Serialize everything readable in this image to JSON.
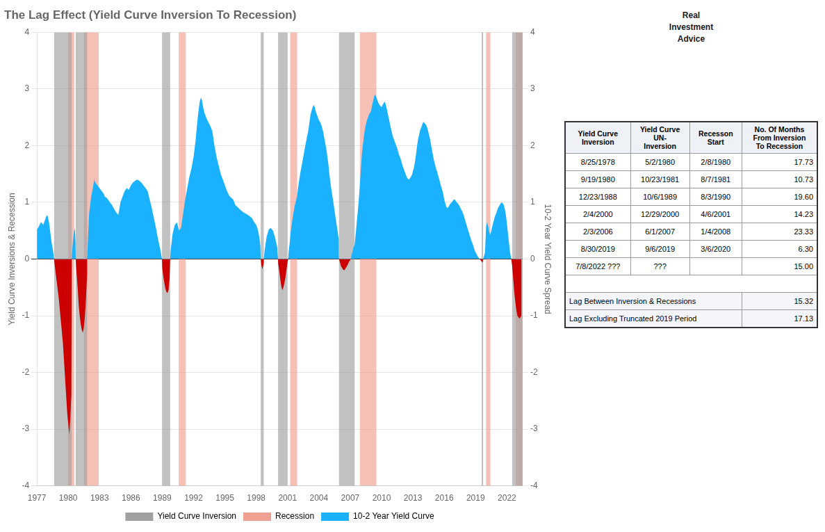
{
  "chart_data": {
    "type": "area",
    "title": "The Lag Effect (Yield Curve Inversion To Recession)",
    "y_label": "Yield Curve Inversions & Recession",
    "y2_label": "10-2 Year Yield Curve Spread",
    "xlim": [
      1977,
      2023.5
    ],
    "xticks": [
      1977,
      1980,
      1983,
      1986,
      1989,
      1992,
      1995,
      1998,
      2001,
      2004,
      2007,
      2010,
      2013,
      2016,
      2019,
      2022
    ],
    "ylim": [
      -4,
      4
    ],
    "yticks": [
      -4,
      -3,
      -2,
      -1,
      0,
      1,
      2,
      3,
      4
    ],
    "y2lim": [
      -4,
      4
    ],
    "y2ticks": [
      -4,
      -3,
      -2,
      -1,
      0,
      1,
      2,
      3,
      4
    ],
    "grid": "y",
    "legend": "bottom",
    "x": [
      1977.0,
      1977.1,
      1977.2,
      1977.3,
      1977.4,
      1977.5,
      1977.6,
      1977.7,
      1977.8,
      1977.9,
      1978.0,
      1978.1,
      1978.2,
      1978.3,
      1978.4,
      1978.5,
      1978.6,
      1978.65,
      1978.7,
      1978.8,
      1978.9,
      1979.0,
      1979.1,
      1979.2,
      1979.3,
      1979.4,
      1979.5,
      1979.6,
      1979.7,
      1979.8,
      1979.9,
      1980.0,
      1980.1,
      1980.2,
      1980.3,
      1980.34,
      1980.4,
      1980.5,
      1980.6,
      1980.65,
      1980.7,
      1980.72,
      1980.75,
      1980.8,
      1980.9,
      1981.0,
      1981.1,
      1981.2,
      1981.3,
      1981.4,
      1981.5,
      1981.6,
      1981.7,
      1981.8,
      1981.81,
      1981.9,
      1982.0,
      1982.2,
      1982.4,
      1982.5,
      1982.6,
      1982.8,
      1983.0,
      1983.2,
      1983.4,
      1983.5,
      1983.7,
      1983.8,
      1984.0,
      1984.2,
      1984.4,
      1984.6,
      1984.8,
      1985.0,
      1985.2,
      1985.4,
      1985.6,
      1985.8,
      1986.0,
      1986.2,
      1986.4,
      1986.6,
      1986.8,
      1987.0,
      1987.2,
      1987.4,
      1987.6,
      1987.8,
      1988.0,
      1988.2,
      1988.4,
      1988.6,
      1988.8,
      1988.98,
      1989.0,
      1989.1,
      1989.2,
      1989.3,
      1989.4,
      1989.5,
      1989.6,
      1989.7,
      1989.76,
      1989.8,
      1989.9,
      1990.0,
      1990.2,
      1990.4,
      1990.5,
      1990.6,
      1990.8,
      1991.0,
      1991.2,
      1991.4,
      1991.5,
      1991.6,
      1991.8,
      1992.0,
      1992.1,
      1992.2,
      1992.3,
      1992.4,
      1992.5,
      1992.6,
      1992.7,
      1992.8,
      1992.9,
      1993.0,
      1993.2,
      1993.4,
      1993.6,
      1993.8,
      1994.0,
      1994.2,
      1994.4,
      1994.6,
      1994.8,
      1995.0,
      1995.2,
      1995.4,
      1995.6,
      1995.8,
      1996.0,
      1996.2,
      1996.4,
      1996.6,
      1996.8,
      1997.0,
      1997.2,
      1997.4,
      1997.6,
      1997.8,
      1998.0,
      1998.1,
      1998.2,
      1998.3,
      1998.4,
      1998.43,
      1998.5,
      1998.6,
      1998.7,
      1998.72,
      1998.8,
      1998.9,
      1999.0,
      1999.2,
      1999.4,
      1999.6,
      1999.8,
      2000.0,
      2000.09,
      2000.1,
      2000.2,
      2000.3,
      2000.4,
      2000.5,
      2000.6,
      2000.7,
      2000.8,
      2000.9,
      2001.0,
      2001.05,
      2001.1,
      2001.2,
      2001.3,
      2001.5,
      2001.7,
      2001.9,
      2002.0,
      2002.2,
      2002.4,
      2002.6,
      2002.8,
      2003.0,
      2003.1,
      2003.2,
      2003.3,
      2003.4,
      2003.5,
      2003.6,
      2003.7,
      2003.8,
      2003.9,
      2004.0,
      2004.1,
      2004.2,
      2004.3,
      2004.4,
      2004.5,
      2004.6,
      2004.7,
      2004.8,
      2004.9,
      2005.0,
      2005.1,
      2005.2,
      2005.3,
      2005.4,
      2005.5,
      2005.6,
      2005.7,
      2005.8,
      2005.9,
      2005.92,
      2006.0,
      2006.1,
      2006.2,
      2006.3,
      2006.4,
      2006.5,
      2006.6,
      2006.7,
      2006.8,
      2006.9,
      2007.0,
      2007.1,
      2007.2,
      2007.3,
      2007.42,
      2007.5,
      2007.6,
      2007.7,
      2007.8,
      2007.9,
      2008.0,
      2008.1,
      2008.2,
      2008.3,
      2008.4,
      2008.5,
      2008.6,
      2008.7,
      2008.8,
      2008.9,
      2009.0,
      2009.1,
      2009.2,
      2009.3,
      2009.4,
      2009.5,
      2009.6,
      2009.7,
      2009.8,
      2009.9,
      2010.0,
      2010.1,
      2010.2,
      2010.3,
      2010.4,
      2010.5,
      2010.6,
      2010.7,
      2010.8,
      2010.9,
      2011.0,
      2011.1,
      2011.2,
      2011.3,
      2011.4,
      2011.5,
      2011.6,
      2011.7,
      2011.8,
      2011.9,
      2012.0,
      2012.1,
      2012.2,
      2012.3,
      2012.4,
      2012.5,
      2012.6,
      2012.7,
      2012.8,
      2012.9,
      2013.0,
      2013.1,
      2013.2,
      2013.3,
      2013.4,
      2013.5,
      2013.6,
      2013.7,
      2013.8,
      2013.9,
      2014.0,
      2014.1,
      2014.2,
      2014.3,
      2014.4,
      2014.5,
      2014.6,
      2014.7,
      2014.8,
      2014.9,
      2015.0,
      2015.1,
      2015.2,
      2015.3,
      2015.4,
      2015.5,
      2015.6,
      2015.7,
      2015.8,
      2015.9,
      2016.0,
      2016.1,
      2016.2,
      2016.3,
      2016.4,
      2016.5,
      2016.6,
      2016.7,
      2016.8,
      2016.9,
      2017.0,
      2017.1,
      2017.2,
      2017.3,
      2017.4,
      2017.5,
      2017.6,
      2017.7,
      2017.8,
      2017.9,
      2018.0,
      2018.1,
      2018.2,
      2018.3,
      2018.4,
      2018.5,
      2018.6,
      2018.7,
      2018.8,
      2018.9,
      2019.0,
      2019.1,
      2019.2,
      2019.3,
      2019.4,
      2019.5,
      2019.58,
      2019.6,
      2019.65,
      2019.7,
      2019.72,
      2019.8,
      2019.9,
      2020.0,
      2020.1,
      2020.2,
      2020.3,
      2020.4,
      2020.5,
      2020.6,
      2020.7,
      2020.8,
      2020.9,
      2021.0,
      2021.1,
      2021.2,
      2021.3,
      2021.4,
      2021.5,
      2021.6,
      2021.7,
      2021.8,
      2021.9,
      2022.0,
      2022.1,
      2022.2,
      2022.3,
      2022.4,
      2022.5,
      2022.6,
      2022.7,
      2022.8,
      2022.9,
      2023.0,
      2023.2,
      2023.4
    ],
    "series": [
      {
        "name": "10-2 Year Yield Curve",
        "color": "#1ab2ff",
        "negative_color": "#cc0000",
        "values": [
          0.52,
          0.55,
          0.58,
          0.62,
          0.65,
          0.63,
          0.6,
          0.65,
          0.7,
          0.75,
          0.78,
          0.7,
          0.6,
          0.45,
          0.3,
          0.2,
          0.08,
          0.0,
          -0.1,
          -0.25,
          -0.4,
          -0.55,
          -0.7,
          -0.9,
          -1.1,
          -1.3,
          -1.5,
          -1.8,
          -2.1,
          -2.4,
          -2.7,
          -2.9,
          -3.1,
          -2.8,
          -2.4,
          0.0,
          0.2,
          0.4,
          0.55,
          0.5,
          0.3,
          0.0,
          -0.1,
          -0.25,
          -0.5,
          -0.8,
          -1.0,
          -1.15,
          -1.25,
          -1.3,
          -1.2,
          -1.0,
          -0.7,
          -0.3,
          0.0,
          0.4,
          0.8,
          1.1,
          1.3,
          1.4,
          1.35,
          1.3,
          1.25,
          1.2,
          1.15,
          1.1,
          1.08,
          1.05,
          1.0,
          0.95,
          0.88,
          0.82,
          0.78,
          1.0,
          1.1,
          1.2,
          1.25,
          1.22,
          1.3,
          1.35,
          1.38,
          1.4,
          1.38,
          1.35,
          1.3,
          1.25,
          1.2,
          1.05,
          0.9,
          0.72,
          0.55,
          0.35,
          0.18,
          0.0,
          -0.15,
          -0.3,
          -0.42,
          -0.52,
          -0.58,
          -0.6,
          -0.55,
          -0.35,
          0.0,
          0.15,
          0.3,
          0.45,
          0.6,
          0.65,
          0.58,
          0.5,
          0.55,
          0.8,
          1.05,
          1.25,
          1.35,
          1.45,
          1.6,
          1.8,
          1.95,
          2.1,
          2.3,
          2.5,
          2.65,
          2.78,
          2.85,
          2.8,
          2.7,
          2.6,
          2.5,
          2.42,
          2.35,
          2.25,
          2.0,
          1.8,
          1.65,
          1.5,
          1.4,
          1.3,
          1.2,
          1.12,
          1.08,
          1.05,
          0.95,
          0.92,
          0.88,
          0.85,
          0.82,
          0.8,
          0.78,
          0.75,
          0.72,
          0.65,
          0.6,
          0.55,
          0.48,
          0.38,
          0.22,
          0.0,
          -0.12,
          -0.18,
          -0.08,
          0.0,
          0.15,
          0.28,
          0.4,
          0.52,
          0.55,
          0.5,
          0.38,
          0.22,
          0.0,
          -0.08,
          -0.2,
          -0.35,
          -0.48,
          -0.55,
          -0.5,
          -0.42,
          -0.32,
          -0.18,
          -0.05,
          0.0,
          0.12,
          0.28,
          0.48,
          0.75,
          0.95,
          1.1,
          1.25,
          1.5,
          1.7,
          1.9,
          2.1,
          2.28,
          2.42,
          2.55,
          2.62,
          2.68,
          2.72,
          2.68,
          2.6,
          2.55,
          2.5,
          2.45,
          2.42,
          2.38,
          2.32,
          2.25,
          2.15,
          2.05,
          1.95,
          1.82,
          1.68,
          1.5,
          1.35,
          1.22,
          1.1,
          0.98,
          0.85,
          0.72,
          0.6,
          0.48,
          0.35,
          0.0,
          -0.05,
          -0.12,
          -0.15,
          -0.18,
          -0.2,
          -0.18,
          -0.15,
          -0.12,
          -0.08,
          -0.04,
          -0.02,
          0.05,
          0.12,
          0.2,
          0.25,
          0.4,
          0.6,
          0.8,
          1.0,
          1.25,
          1.55,
          1.82,
          2.0,
          2.15,
          2.28,
          2.38,
          2.45,
          2.5,
          2.55,
          2.58,
          2.62,
          2.72,
          2.8,
          2.88,
          2.9,
          2.85,
          2.8,
          2.75,
          2.72,
          2.7,
          2.68,
          2.72,
          2.75,
          2.78,
          2.72,
          2.65,
          2.55,
          2.48,
          2.38,
          2.3,
          2.22,
          2.15,
          2.1,
          2.05,
          2.0,
          1.95,
          1.88,
          1.82,
          1.78,
          1.72,
          1.65,
          1.6,
          1.55,
          1.5,
          1.45,
          1.42,
          1.4,
          1.42,
          1.45,
          1.48,
          1.55,
          1.62,
          1.72,
          1.85,
          2.0,
          2.12,
          2.2,
          2.28,
          2.32,
          2.38,
          2.42,
          2.4,
          2.38,
          2.35,
          2.3,
          2.22,
          2.15,
          2.05,
          1.95,
          1.85,
          1.75,
          1.68,
          1.6,
          1.55,
          1.48,
          1.42,
          1.35,
          1.28,
          1.22,
          1.15,
          1.05,
          0.98,
          0.92,
          0.9,
          0.92,
          0.95,
          0.98,
          1.0,
          1.02,
          1.05,
          1.05,
          1.02,
          1.0,
          0.98,
          0.95,
          0.92,
          0.88,
          0.85,
          0.8,
          0.75,
          0.68,
          0.62,
          0.56,
          0.5,
          0.44,
          0.38,
          0.32,
          0.28,
          0.22,
          0.16,
          0.12,
          0.08,
          0.05,
          0.02,
          0.0,
          -0.02,
          -0.05,
          -0.06,
          -0.05,
          -0.02,
          0.0,
          0.05,
          0.12,
          0.55,
          0.65,
          0.58,
          0.48,
          0.42,
          0.5,
          0.58,
          0.65,
          0.72,
          0.78,
          0.82,
          0.88,
          0.92,
          0.95,
          0.98,
          1.0,
          0.98,
          0.95,
          0.88,
          0.78,
          0.62,
          0.45,
          0.28,
          0.12,
          0.02,
          -0.12,
          -0.35,
          -0.58,
          -0.75,
          -0.9,
          -1.0,
          -1.05,
          -1.0
        ]
      }
    ],
    "bands": [
      {
        "name": "Yield Curve Inversion",
        "color": "#a0a0a0",
        "periods": [
          [
            1978.65,
            1980.34
          ],
          [
            1980.72,
            1981.81
          ],
          [
            1988.98,
            1989.76
          ],
          [
            1998.43,
            1998.72
          ],
          [
            2000.09,
            2001.0
          ],
          [
            2005.92,
            2007.42
          ],
          [
            2019.58,
            2019.72
          ],
          [
            2022.5,
            2023.5
          ]
        ]
      },
      {
        "name": "Recession",
        "color": "#f0a090",
        "periods": [
          [
            1980.0,
            1980.58
          ],
          [
            1981.5,
            1982.92
          ],
          [
            1990.58,
            1991.25
          ],
          [
            2001.25,
            2001.92
          ],
          [
            2007.92,
            2009.5
          ],
          [
            2020.0,
            2020.42
          ],
          [
            2022.83,
            2023.5
          ]
        ]
      }
    ],
    "table": {
      "headers": [
        "Yield Curve\nInversion",
        "Yield Curve\nUN-\nInversion",
        "Recesson\nStart",
        "No. Of Months\nFrom Inversion\nTo Recession"
      ],
      "rows": [
        [
          "8/25/1978",
          "5/2/1980",
          "2/8/1980",
          "17.73"
        ],
        [
          "9/19/1980",
          "10/23/1981",
          "8/7/1981",
          "10.73"
        ],
        [
          "12/23/1988",
          "10/6/1989",
          "8/3/1990",
          "19.60"
        ],
        [
          "2/4/2000",
          "12/29/2000",
          "4/6/2001",
          "14.23"
        ],
        [
          "2/3/2006",
          "6/1/2007",
          "1/4/2008",
          "23.33"
        ],
        [
          "8/30/2019",
          "9/6/2019",
          "3/6/2020",
          "6.30"
        ],
        [
          "7/8/2022 ???",
          "???",
          "",
          "15.00"
        ]
      ],
      "footer_rows": [
        [
          "Lag Between Inversion & Recessions",
          "15.32"
        ],
        [
          "Lag Excluding Truncated 2019 Period",
          "17.13"
        ]
      ]
    },
    "annotation": "Real\nInvestment\nAdvice"
  }
}
